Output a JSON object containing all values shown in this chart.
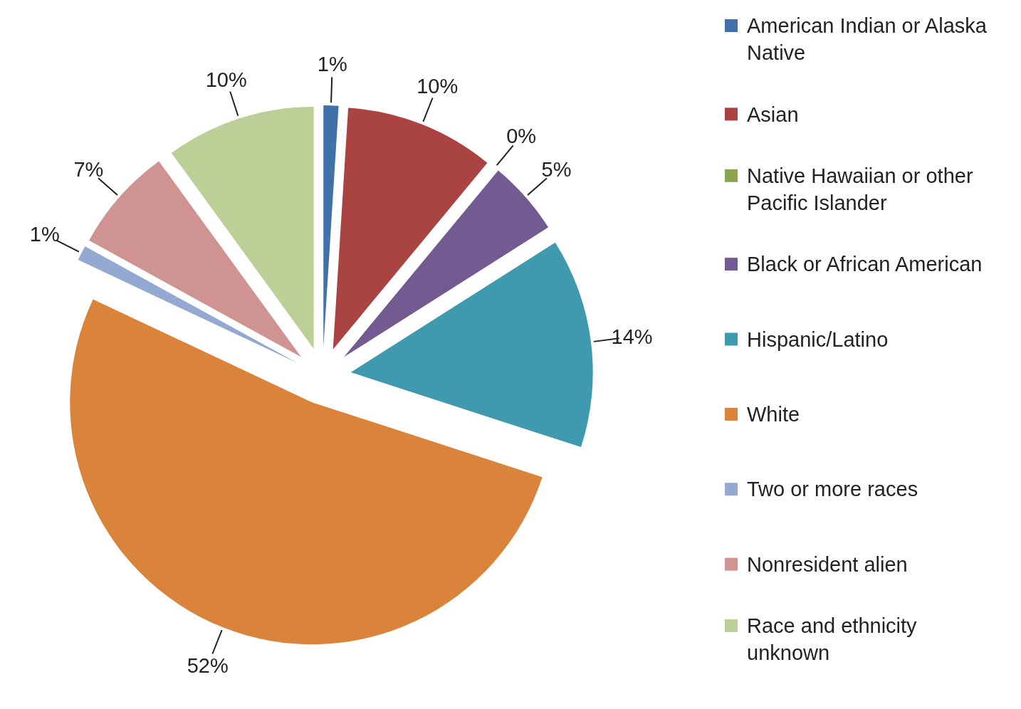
{
  "chart_data": {
    "type": "pie",
    "categories": [
      "American Indian or Alaska Native",
      "Asian",
      "Native Hawaiian or other Pacific Islander",
      "Black or African American",
      "Hispanic/Latino",
      "White",
      "Two or more races",
      "Nonresident alien",
      "Race and ethnicity unknown"
    ],
    "values": [
      1,
      10,
      0,
      5,
      14,
      52,
      1,
      7,
      10
    ],
    "colors": [
      "#4072a9",
      "#a94442",
      "#8aa54e",
      "#735a90",
      "#3f9ab0",
      "#da833a",
      "#93a9d2",
      "#cf9392",
      "#bbcf96"
    ],
    "value_labels": [
      "1%",
      "10%",
      "0%",
      "5%",
      "14%",
      "52%",
      "1%",
      "7%",
      "10%"
    ],
    "legend": "right"
  }
}
